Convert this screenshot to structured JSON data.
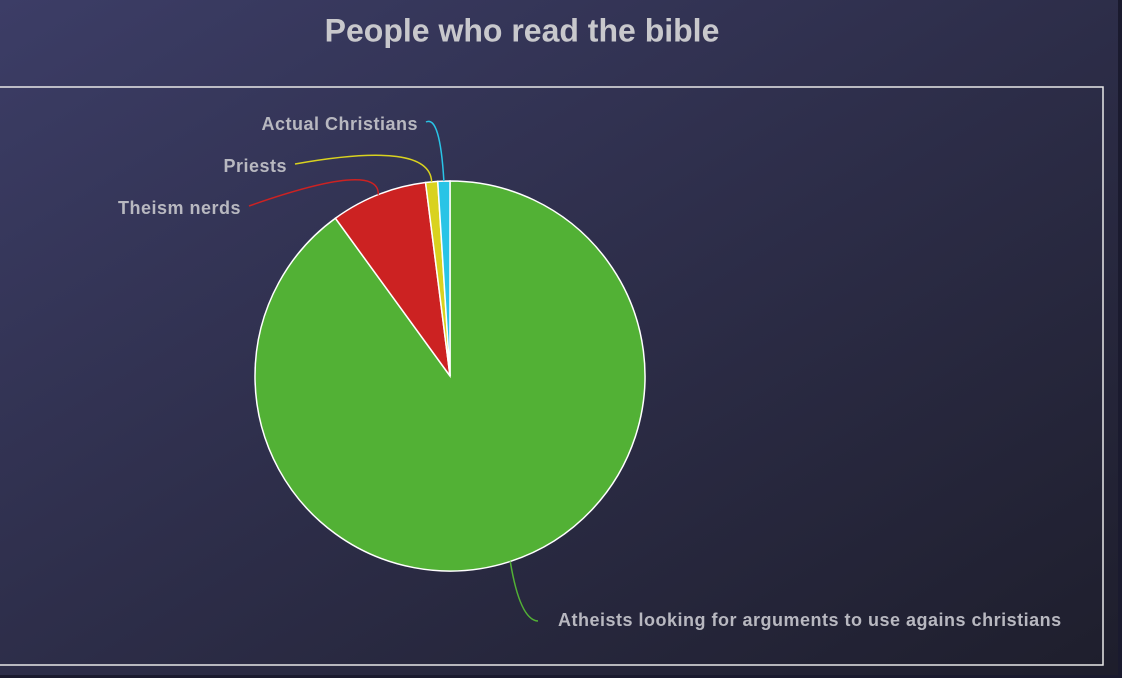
{
  "chart_data": {
    "type": "pie",
    "title": "People who read the bible",
    "categories": [
      "Atheists looking for arguments to use agains christians",
      "Theism nerds",
      "Priests",
      "Actual Christians"
    ],
    "values": [
      90,
      8,
      1,
      1
    ],
    "colors": [
      "#52b135",
      "#cc2222",
      "#d9d21f",
      "#29c4e6"
    ]
  }
}
